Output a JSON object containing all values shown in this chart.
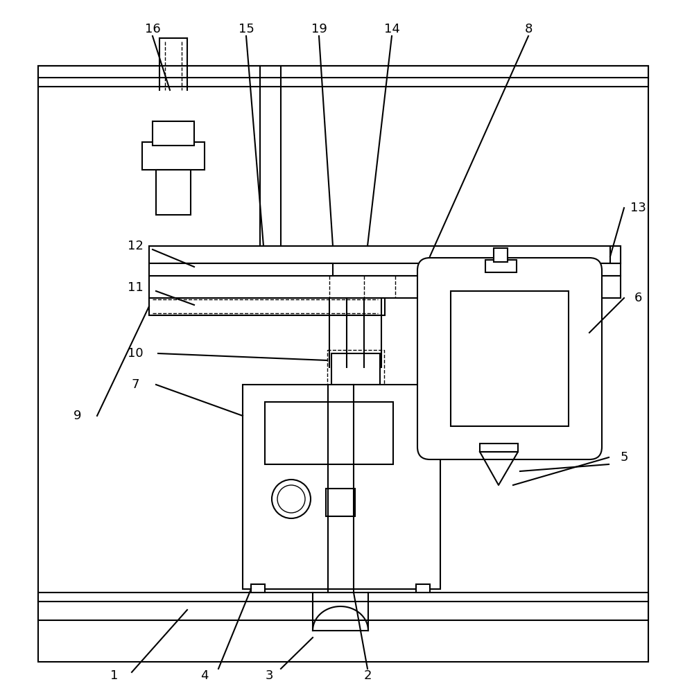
{
  "bg_color": "#ffffff",
  "lc": "#000000",
  "lw": 1.5,
  "lw_thin": 1.0,
  "fig_w": 9.98,
  "fig_h": 10.0,
  "label_fs": 13
}
